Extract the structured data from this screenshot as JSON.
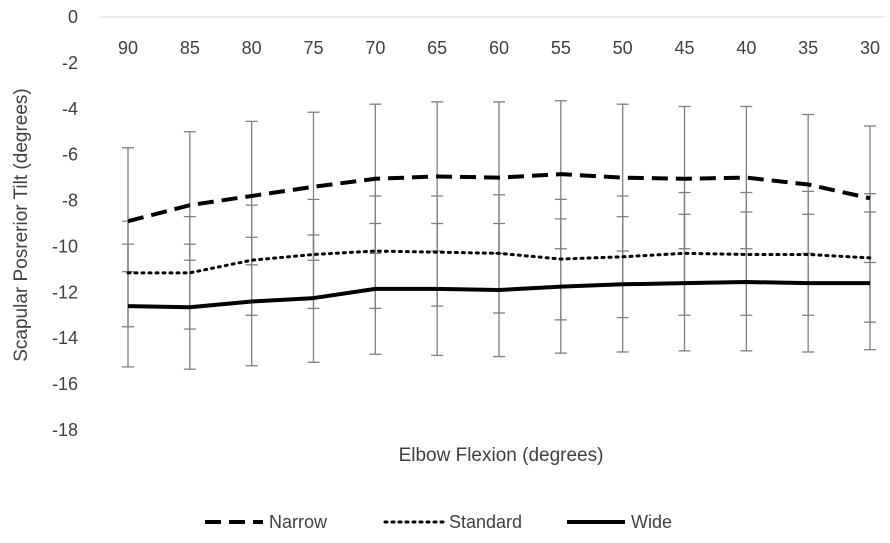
{
  "chart_data": {
    "type": "line",
    "title": "",
    "xlabel": "Elbow Flexion (degrees)",
    "ylabel": "Scapular Posrerior Tilt (degrees)",
    "categories": [
      "90",
      "85",
      "80",
      "75",
      "70",
      "65",
      "60",
      "55",
      "50",
      "45",
      "40",
      "35",
      "30"
    ],
    "ylim": [
      -18,
      0
    ],
    "yticks": [
      "0",
      "-2",
      "-4",
      "-6",
      "-8",
      "-10",
      "-12",
      "-14",
      "-16",
      "-18"
    ],
    "x_axis_position": "top",
    "grid": false,
    "legend_position": "bottom",
    "series": [
      {
        "name": "Narrow",
        "style": "dashed",
        "color": "#000000",
        "values": [
          -8.9,
          -8.2,
          -7.8,
          -7.4,
          -7.05,
          -6.95,
          -7.0,
          -6.85,
          -7.0,
          -7.05,
          -7.0,
          -7.3,
          -7.9
        ],
        "error_upper": [
          -5.7,
          -5.0,
          -4.55,
          -4.15,
          -3.8,
          -3.7,
          -3.7,
          -3.65,
          -3.8,
          -3.9,
          -3.9,
          -4.25,
          -4.75
        ],
        "error_lower": [
          -11.1,
          -10.6,
          -10.8,
          -10.6,
          -10.3,
          -10.2,
          -10.3,
          -10.1,
          -10.2,
          -10.1,
          -10.1,
          -10.3,
          -10.7
        ]
      },
      {
        "name": "Standard",
        "style": "dotted",
        "color": "#000000",
        "values": [
          -11.15,
          -11.15,
          -10.6,
          -10.35,
          -10.2,
          -10.25,
          -10.3,
          -10.55,
          -10.45,
          -10.3,
          -10.35,
          -10.35,
          -10.5
        ],
        "error_upper": [
          -8.9,
          -8.7,
          -8.2,
          -7.95,
          -7.8,
          -7.8,
          -7.75,
          -7.95,
          -7.8,
          -7.65,
          -7.65,
          -7.6,
          -7.7
        ],
        "error_lower": [
          -13.5,
          -13.6,
          -13.0,
          -12.7,
          -12.7,
          -12.6,
          -12.9,
          -13.2,
          -13.1,
          -13.0,
          -13.0,
          -13.0,
          -13.3
        ]
      },
      {
        "name": "Wide",
        "style": "solid",
        "color": "#000000",
        "values": [
          -12.6,
          -12.65,
          -12.4,
          -12.25,
          -11.85,
          -11.85,
          -11.9,
          -11.75,
          -11.65,
          -11.6,
          -11.55,
          -11.6,
          -11.6
        ],
        "error_upper": [
          -9.9,
          -9.9,
          -9.6,
          -9.5,
          -9.0,
          -9.0,
          -9.0,
          -8.8,
          -8.7,
          -8.6,
          -8.5,
          -8.6,
          -8.5
        ],
        "error_lower": [
          -15.25,
          -15.35,
          -15.2,
          -15.05,
          -14.7,
          -14.75,
          -14.8,
          -14.65,
          -14.6,
          -14.55,
          -14.55,
          -14.6,
          -14.5
        ]
      }
    ]
  }
}
